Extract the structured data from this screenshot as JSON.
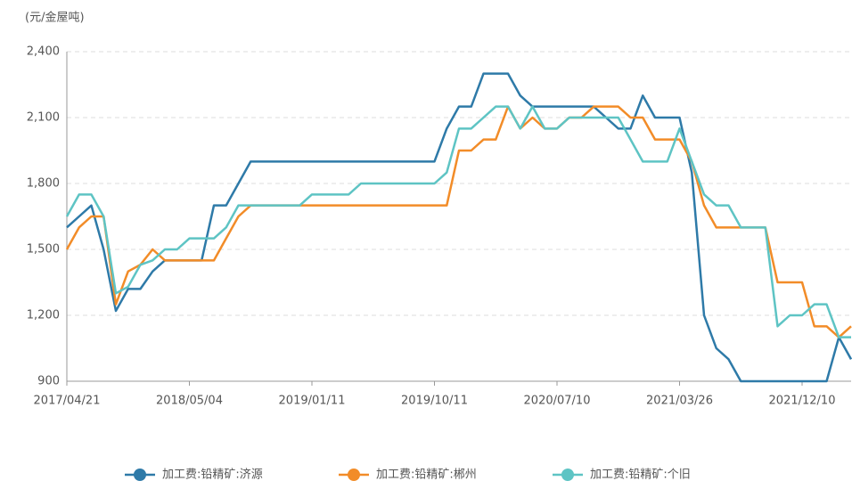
{
  "chart_data": {
    "type": "line",
    "y_axis_label": "(元/金屋吨)",
    "categories": [
      "2017/04/21",
      null,
      null,
      null,
      null,
      null,
      null,
      null,
      null,
      null,
      "2018/05/04",
      null,
      null,
      null,
      null,
      null,
      null,
      null,
      null,
      null,
      "2019/01/11",
      null,
      null,
      null,
      null,
      null,
      null,
      null,
      null,
      null,
      "2019/10/11",
      null,
      null,
      null,
      null,
      null,
      null,
      null,
      null,
      null,
      "2020/07/10",
      null,
      null,
      null,
      null,
      null,
      null,
      null,
      null,
      null,
      "2021/03/26",
      null,
      null,
      null,
      null,
      null,
      null,
      null,
      null,
      null,
      "2021/12/10",
      null,
      null,
      null,
      null
    ],
    "series": [
      {
        "name": "加工费:铅精矿:济源",
        "color": "#2e7aa8",
        "values": [
          1600,
          1650,
          1700,
          1500,
          1220,
          1320,
          1320,
          1400,
          1450,
          1450,
          1450,
          1450,
          1700,
          1700,
          1800,
          1900,
          1900,
          1900,
          1900,
          1900,
          1900,
          1900,
          1900,
          1900,
          1900,
          1900,
          1900,
          1900,
          1900,
          1900,
          1900,
          2050,
          2150,
          2150,
          2300,
          2300,
          2300,
          2200,
          2150,
          2150,
          2150,
          2150,
          2150,
          2150,
          2100,
          2050,
          2050,
          2200,
          2100,
          2100,
          2100,
          1850,
          1200,
          1050,
          1000,
          900,
          900,
          900,
          900,
          900,
          900,
          900,
          900,
          1100,
          1000
        ]
      },
      {
        "name": "加工费:铅精矿:郴州",
        "color": "#f28c28",
        "values": [
          1500,
          1600,
          1650,
          1650,
          1250,
          1400,
          1430,
          1500,
          1450,
          1450,
          1450,
          1450,
          1450,
          1550,
          1650,
          1700,
          1700,
          1700,
          1700,
          1700,
          1700,
          1700,
          1700,
          1700,
          1700,
          1700,
          1700,
          1700,
          1700,
          1700,
          1700,
          1700,
          1950,
          1950,
          2000,
          2000,
          2150,
          2050,
          2100,
          2050,
          2050,
          2100,
          2100,
          2150,
          2150,
          2150,
          2100,
          2100,
          2000,
          2000,
          2000,
          1900,
          1700,
          1600,
          1600,
          1600,
          1600,
          1600,
          1350,
          1350,
          1350,
          1150,
          1150,
          1100,
          1150
        ]
      },
      {
        "name": "加工费:铅精矿:个旧",
        "color": "#5ec4c4",
        "values": [
          1650,
          1750,
          1750,
          1650,
          1300,
          1330,
          1430,
          1450,
          1500,
          1500,
          1550,
          1550,
          1550,
          1600,
          1700,
          1700,
          1700,
          1700,
          1700,
          1700,
          1750,
          1750,
          1750,
          1750,
          1800,
          1800,
          1800,
          1800,
          1800,
          1800,
          1800,
          1850,
          2050,
          2050,
          2100,
          2150,
          2150,
          2050,
          2150,
          2050,
          2050,
          2100,
          2100,
          2100,
          2100,
          2100,
          2000,
          1900,
          1900,
          1900,
          2050,
          1900,
          1750,
          1700,
          1700,
          1600,
          1600,
          1600,
          1150,
          1200,
          1200,
          1250,
          1250,
          1100,
          1100
        ]
      }
    ],
    "ylim": [
      900,
      2400
    ],
    "yticks": [
      {
        "value": 900,
        "label": "900"
      },
      {
        "value": 1200,
        "label": "1,200"
      },
      {
        "value": 1500,
        "label": "1,500"
      },
      {
        "value": 1800,
        "label": "1,800"
      },
      {
        "value": 2100,
        "label": "2,100"
      },
      {
        "value": 2400,
        "label": "2,400"
      }
    ],
    "grid": true,
    "legend": "bottom"
  }
}
